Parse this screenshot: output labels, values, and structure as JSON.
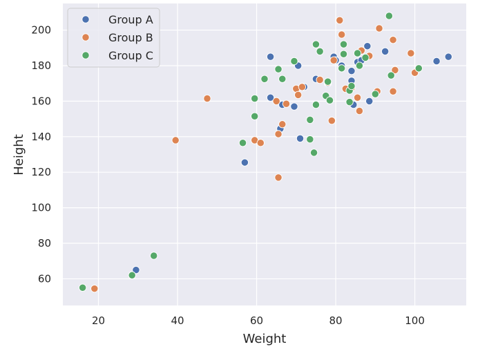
{
  "chart_data": {
    "type": "scatter",
    "title": "",
    "xlabel": "Weight",
    "ylabel": "Height",
    "xlim": [
      11,
      113
    ],
    "ylim": [
      45,
      215
    ],
    "xticks": [
      20,
      40,
      60,
      80,
      100
    ],
    "yticks": [
      60,
      80,
      100,
      120,
      140,
      160,
      180,
      200
    ],
    "grid": true,
    "legend_position": "top-left",
    "series": [
      {
        "name": "Group A",
        "color": "#4c72b0",
        "points": [
          [
            29.5,
            65
          ],
          [
            28.5,
            62
          ],
          [
            57,
            125.5
          ],
          [
            63.5,
            185
          ],
          [
            63.5,
            162
          ],
          [
            66,
            144.5
          ],
          [
            66.5,
            158
          ],
          [
            69.5,
            157
          ],
          [
            70.5,
            180
          ],
          [
            71,
            139
          ],
          [
            72,
            168
          ],
          [
            75,
            172.5
          ],
          [
            78,
            170
          ],
          [
            79.5,
            185
          ],
          [
            80,
            183
          ],
          [
            81.5,
            180
          ],
          [
            84,
            177
          ],
          [
            84,
            171.5
          ],
          [
            84.5,
            158
          ],
          [
            85.5,
            182
          ],
          [
            86.5,
            183
          ],
          [
            88,
            191
          ],
          [
            88.5,
            160
          ],
          [
            92.5,
            188
          ],
          [
            105.5,
            182.5
          ],
          [
            108.5,
            185
          ]
        ]
      },
      {
        "name": "Group B",
        "color": "#dd8452",
        "points": [
          [
            19,
            54.5
          ],
          [
            39.5,
            138
          ],
          [
            47.5,
            161.5
          ],
          [
            59.5,
            138
          ],
          [
            61,
            136.5
          ],
          [
            65,
            160
          ],
          [
            65.5,
            141.5
          ],
          [
            65.5,
            117
          ],
          [
            66.5,
            147
          ],
          [
            67.5,
            158.5
          ],
          [
            70,
            167
          ],
          [
            70.5,
            163.5
          ],
          [
            71.5,
            168
          ],
          [
            76,
            172
          ],
          [
            78,
            170.5
          ],
          [
            79,
            149
          ],
          [
            79.5,
            183
          ],
          [
            81,
            205.5
          ],
          [
            81.5,
            197.5
          ],
          [
            82.5,
            167
          ],
          [
            84,
            167.5
          ],
          [
            85.5,
            162
          ],
          [
            86,
            154.5
          ],
          [
            86.5,
            188.5
          ],
          [
            88.5,
            185.5
          ],
          [
            90.5,
            165.5
          ],
          [
            91,
            201
          ],
          [
            94.5,
            165.5
          ],
          [
            95,
            177.5
          ],
          [
            94.5,
            194.5
          ],
          [
            99,
            187
          ],
          [
            100,
            176
          ]
        ]
      },
      {
        "name": "Group C",
        "color": "#55a868",
        "points": [
          [
            16,
            55
          ],
          [
            28.5,
            62
          ],
          [
            34,
            73
          ],
          [
            56.5,
            136.5
          ],
          [
            59.5,
            151.5
          ],
          [
            59.5,
            161.5
          ],
          [
            62,
            172.5
          ],
          [
            65.5,
            178
          ],
          [
            66.5,
            172.5
          ],
          [
            69.5,
            182.5
          ],
          [
            73.5,
            149.5
          ],
          [
            73.5,
            138.5
          ],
          [
            74.5,
            131
          ],
          [
            75,
            192
          ],
          [
            75,
            158
          ],
          [
            76,
            188
          ],
          [
            77.5,
            163
          ],
          [
            78,
            171
          ],
          [
            78.5,
            160.5
          ],
          [
            81.5,
            178.5
          ],
          [
            82,
            192
          ],
          [
            82,
            186.5
          ],
          [
            83.5,
            159.5
          ],
          [
            83.5,
            166
          ],
          [
            84,
            168.5
          ],
          [
            85.5,
            187
          ],
          [
            86,
            180
          ],
          [
            87.5,
            184.5
          ],
          [
            90,
            164
          ],
          [
            93.5,
            208
          ],
          [
            94,
            174.5
          ],
          [
            101,
            178.5
          ]
        ]
      }
    ]
  }
}
